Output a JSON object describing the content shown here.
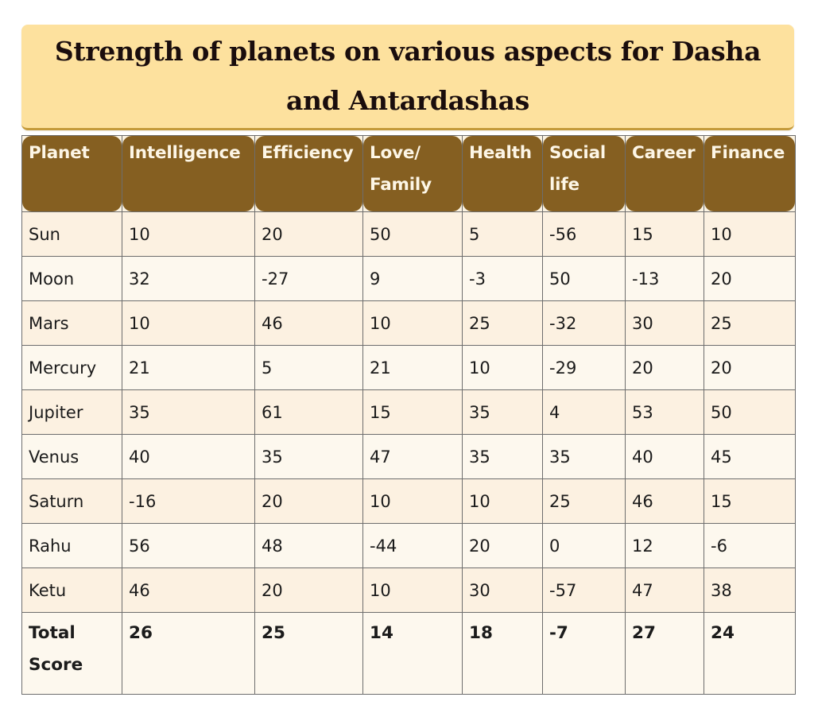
{
  "title": "Strength of planets on various aspects for Dasha and Antardashas",
  "colors": {
    "title_bg": "#fde19e",
    "header_bg": "#855f21",
    "header_text": "#fdf6e6",
    "row_odd": "#fcf1e1",
    "row_even": "#fdf8ee"
  },
  "table": {
    "headers": [
      "Planet",
      "Intelligence",
      "Efficiency",
      "Love/ Family",
      "Health",
      "Social life",
      "Career",
      "Finance"
    ],
    "rows": [
      {
        "planet": "Sun",
        "values": [
          "10",
          "20",
          "50",
          "5",
          "-56",
          "15",
          "10"
        ]
      },
      {
        "planet": "Moon",
        "values": [
          "32",
          "-27",
          "9",
          "-3",
          "50",
          "-13",
          "20"
        ]
      },
      {
        "planet": "Mars",
        "values": [
          "10",
          "46",
          "10",
          "25",
          "-32",
          "30",
          "25"
        ]
      },
      {
        "planet": "Mercury",
        "values": [
          "21",
          "5",
          "21",
          "10",
          "-29",
          "20",
          "20"
        ]
      },
      {
        "planet": "Jupiter",
        "values": [
          "35",
          "61",
          "15",
          "35",
          "4",
          "53",
          "50"
        ]
      },
      {
        "planet": "Venus",
        "values": [
          "40",
          "35",
          "47",
          "35",
          "35",
          "40",
          "45"
        ]
      },
      {
        "planet": "Saturn",
        "values": [
          "-16",
          "20",
          "10",
          "10",
          "25",
          "46",
          "15"
        ]
      },
      {
        "planet": "Rahu",
        "values": [
          "56",
          "48",
          "-44",
          "20",
          "0",
          "12",
          "-6"
        ]
      },
      {
        "planet": "Ketu",
        "values": [
          "46",
          "20",
          "10",
          "30",
          "-57",
          "47",
          "38"
        ]
      }
    ],
    "total": {
      "label": "Total Score",
      "values": [
        "26",
        "25",
        "14",
        "18",
        "-7",
        "27",
        "24"
      ]
    }
  }
}
